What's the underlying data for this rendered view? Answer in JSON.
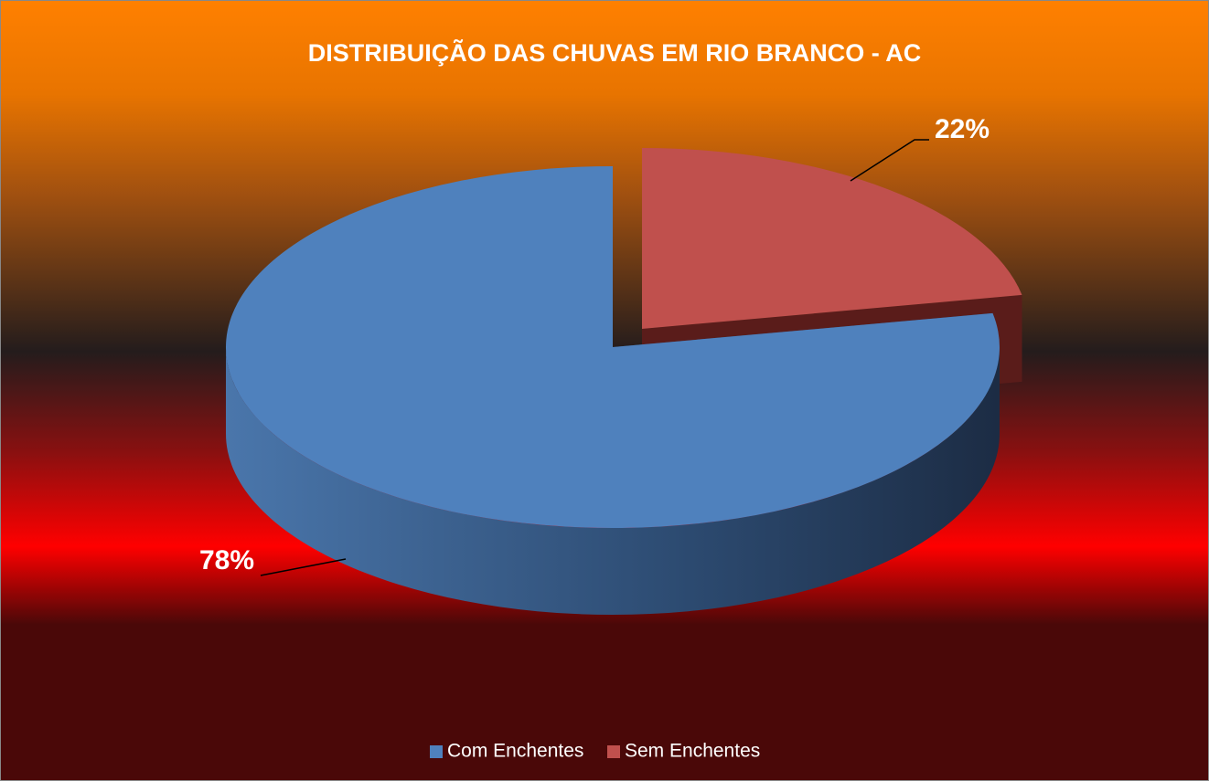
{
  "chart_data": {
    "type": "pie",
    "title": "DISTRIBUIÇÃO DAS CHUVAS EM RIO BRANCO - AC",
    "categories": [
      "Com Enchentes",
      "Sem Enchentes"
    ],
    "values": [
      78,
      22
    ],
    "value_labels": [
      "78%",
      "22%"
    ],
    "colors": [
      "#4f81bd",
      "#c0504d"
    ],
    "start_category": 1,
    "legend": "bottom"
  }
}
